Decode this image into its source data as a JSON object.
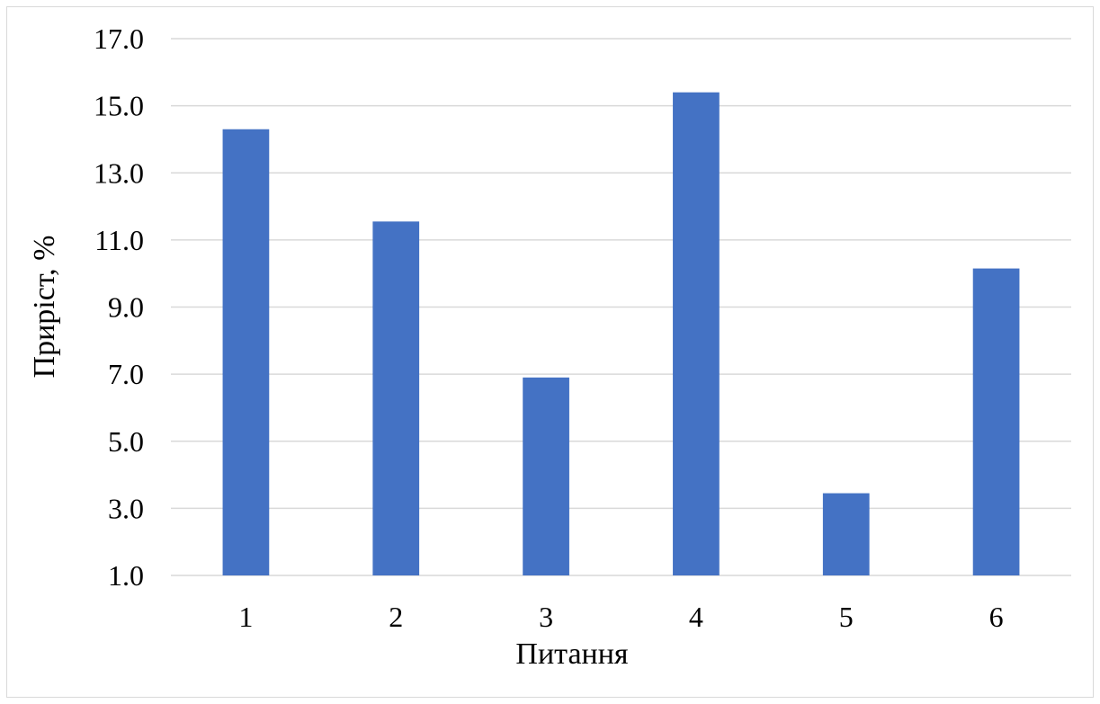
{
  "chart_data": {
    "type": "bar",
    "categories": [
      "1",
      "2",
      "3",
      "4",
      "5",
      "6"
    ],
    "values": [
      14.3,
      11.55,
      6.9,
      15.4,
      3.45,
      10.15
    ],
    "xlabel": "Питання",
    "ylabel": "Приріст, %",
    "ylim": [
      1.0,
      17.0
    ],
    "yticks": [
      "1.0",
      "3.0",
      "5.0",
      "7.0",
      "9.0",
      "11.0",
      "13.0",
      "15.0",
      "17.0"
    ],
    "grid": true,
    "bar_color": "#4472C4",
    "grid_color": "#d9d9d9"
  }
}
